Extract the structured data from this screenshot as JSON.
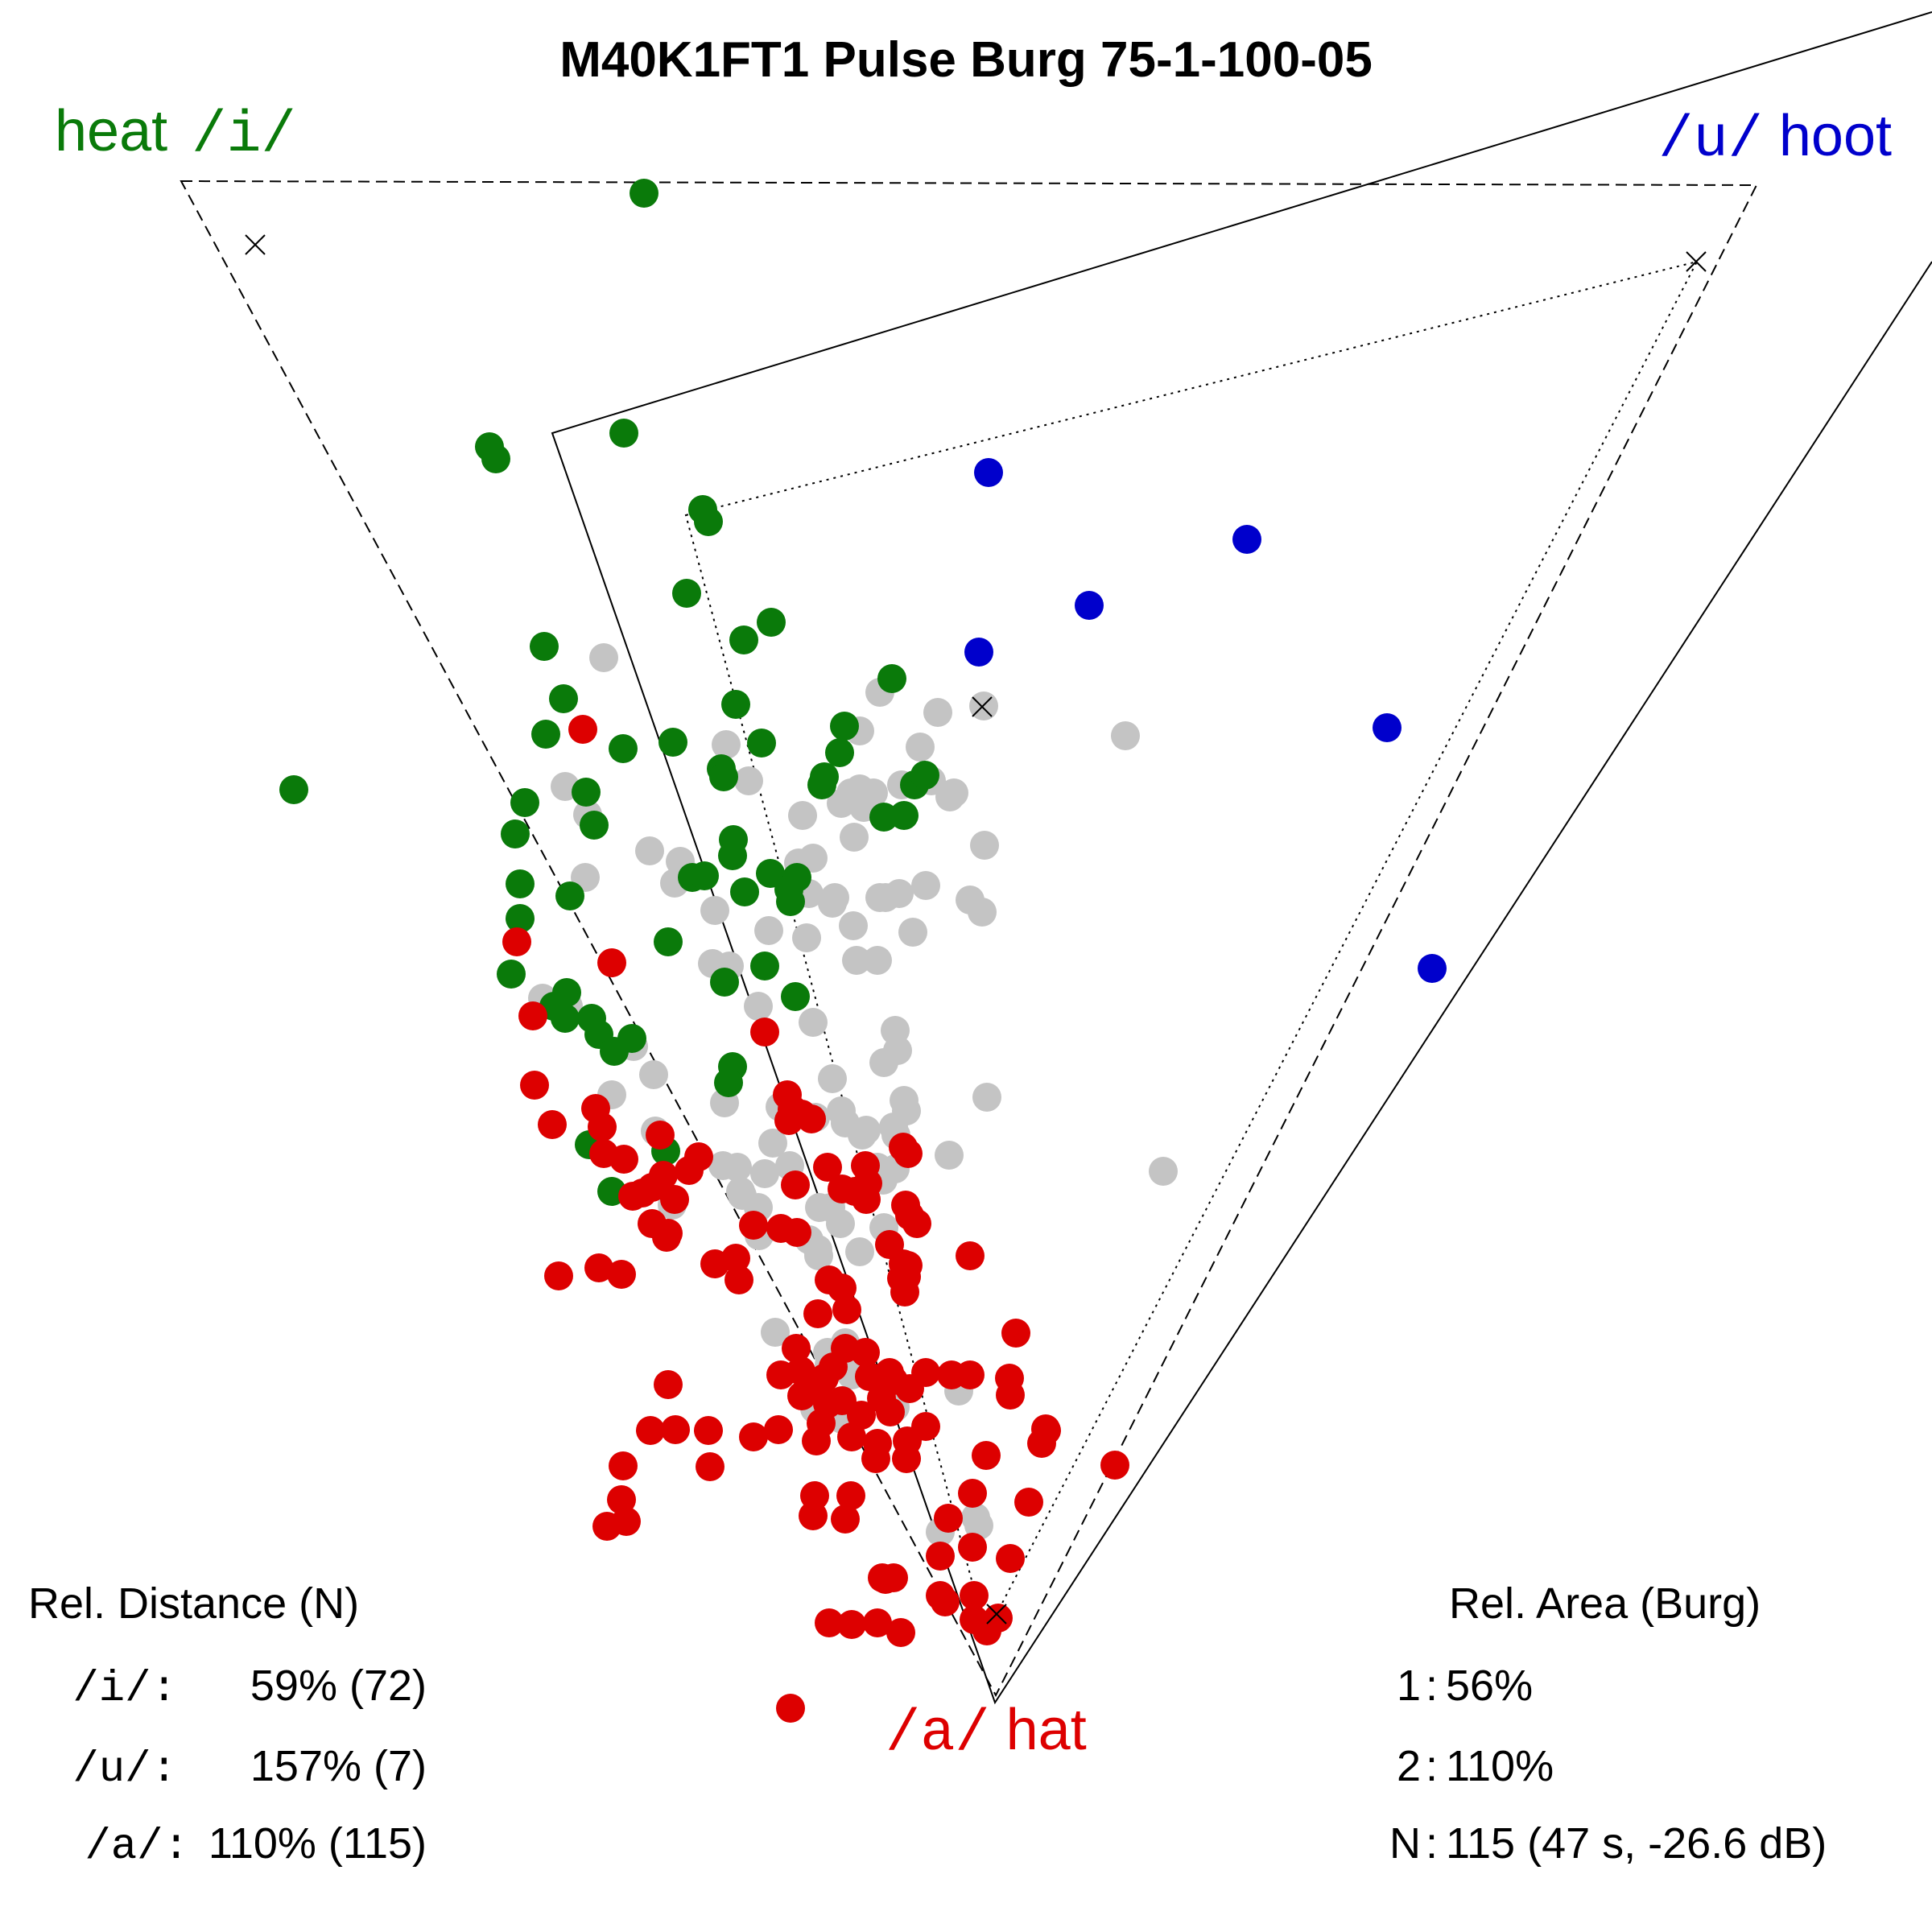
{
  "chart_data": {
    "type": "scatter",
    "title": "M40K1FT1 Pulse Burg 75-1-100-05",
    "corner_labels": {
      "i": {
        "word": "heat",
        "symbol": "/i/",
        "color": "#0a7a0a"
      },
      "u": {
        "word": "hoot",
        "symbol": "/u/",
        "color": "#0000cc"
      },
      "a": {
        "word": "hat",
        "symbol": "/a/",
        "color": "#dd0000"
      }
    },
    "series": [
      {
        "name": "i",
        "color": "#0a7a0a",
        "points": [
          [
            800,
            240
          ],
          [
            775,
            538
          ],
          [
            608,
            555
          ],
          [
            616,
            570
          ],
          [
            873,
            633
          ],
          [
            880,
            648
          ],
          [
            853,
            737
          ],
          [
            958,
            773
          ],
          [
            676,
            803
          ],
          [
            924,
            795
          ],
          [
            700,
            868
          ],
          [
            1108,
            843
          ],
          [
            678,
            912
          ],
          [
            774,
            930
          ],
          [
            836,
            922
          ],
          [
            914,
            875
          ],
          [
            946,
            923
          ],
          [
            1049,
            902
          ],
          [
            1043,
            935
          ],
          [
            896,
            955
          ],
          [
            1024,
            965
          ],
          [
            1136,
            975
          ],
          [
            728,
            984
          ],
          [
            899,
            965
          ],
          [
            1149,
            963
          ],
          [
            1021,
            975
          ],
          [
            1098,
            1015
          ],
          [
            1123,
            1013
          ],
          [
            652,
            997
          ],
          [
            738,
            1025
          ],
          [
            911,
            1043
          ],
          [
            910,
            1063
          ],
          [
            640,
            1036
          ],
          [
            860,
            1090
          ],
          [
            875,
            1088
          ],
          [
            925,
            1108
          ],
          [
            957,
            1085
          ],
          [
            990,
            1090
          ],
          [
            982,
            1120
          ],
          [
            708,
            1113
          ],
          [
            980,
            1105
          ],
          [
            646,
            1098
          ],
          [
            646,
            1141
          ],
          [
            830,
            1170
          ],
          [
            950,
            1200
          ],
          [
            635,
            1210
          ],
          [
            900,
            1220
          ],
          [
            988,
            1238
          ],
          [
            704,
            1233
          ],
          [
            735,
            1265
          ],
          [
            688,
            1250
          ],
          [
            702,
            1265
          ],
          [
            744,
            1285
          ],
          [
            763,
            1306
          ],
          [
            785,
            1290
          ],
          [
            910,
            1325
          ],
          [
            905,
            1345
          ],
          [
            732,
            1422
          ],
          [
            827,
            1430
          ],
          [
            760,
            1480
          ],
          [
            365,
            981
          ]
        ]
      },
      {
        "name": "u",
        "color": "#0000cc",
        "points": [
          [
            1228,
            587
          ],
          [
            1549,
            670
          ],
          [
            1353,
            752
          ],
          [
            1216,
            810
          ],
          [
            1723,
            904
          ],
          [
            1779,
            1203
          ]
        ]
      },
      {
        "name": "a",
        "color": "#dd0000",
        "points": [
          [
            724,
            906
          ],
          [
            642,
            1170
          ],
          [
            760,
            1196
          ],
          [
            662,
            1262
          ],
          [
            950,
            1282
          ],
          [
            664,
            1348
          ],
          [
            740,
            1377
          ],
          [
            686,
            1397
          ],
          [
            748,
            1400
          ],
          [
            820,
            1410
          ],
          [
            978,
            1360
          ],
          [
            984,
            1378
          ],
          [
            1122,
            1425
          ],
          [
            1128,
            1433
          ],
          [
            1075,
            1448
          ],
          [
            1078,
            1470
          ],
          [
            750,
            1433
          ],
          [
            775,
            1440
          ],
          [
            1028,
            1450
          ],
          [
            980,
            1392
          ],
          [
            996,
            1384
          ],
          [
            1008,
            1390
          ],
          [
            824,
            1460
          ],
          [
            856,
            1454
          ],
          [
            1046,
            1477
          ],
          [
            868,
            1437
          ],
          [
            1076,
            1490
          ],
          [
            786,
            1486
          ],
          [
            798,
            1482
          ],
          [
            810,
            1475
          ],
          [
            838,
            1490
          ],
          [
            810,
            1520
          ],
          [
            988,
            1472
          ],
          [
            1062,
            1480
          ],
          [
            1125,
            1497
          ],
          [
            1130,
            1510
          ],
          [
            1139,
            1520
          ],
          [
            1205,
            1560
          ],
          [
            936,
            1522
          ],
          [
            830,
            1532
          ],
          [
            970,
            1526
          ],
          [
            828,
            1537
          ],
          [
            990,
            1531
          ],
          [
            1105,
            1546
          ],
          [
            1128,
            1572
          ],
          [
            1126,
            1586
          ],
          [
            1122,
            1570
          ],
          [
            1120,
            1588
          ],
          [
            1124,
            1605
          ],
          [
            1046,
            1600
          ],
          [
            1030,
            1590
          ],
          [
            1016,
            1632
          ],
          [
            694,
            1585
          ],
          [
            744,
            1575
          ],
          [
            772,
            1583
          ],
          [
            914,
            1563
          ],
          [
            888,
            1570
          ],
          [
            918,
            1590
          ],
          [
            1052,
            1627
          ],
          [
            989,
            1675
          ],
          [
            1262,
            1656
          ],
          [
            1050,
            1675
          ],
          [
            1075,
            1680
          ],
          [
            1035,
            1698
          ],
          [
            995,
            1703
          ],
          [
            970,
            1708
          ],
          [
            1105,
            1705
          ],
          [
            1110,
            1715
          ],
          [
            1080,
            1710
          ],
          [
            1024,
            1712
          ],
          [
            1010,
            1722
          ],
          [
            1028,
            1744
          ],
          [
            1095,
            1737
          ],
          [
            1130,
            1725
          ],
          [
            1150,
            1705
          ],
          [
            1182,
            1708
          ],
          [
            1205,
            1708
          ],
          [
            1254,
            1712
          ],
          [
            1255,
            1733
          ],
          [
            996,
            1734
          ],
          [
            1046,
            1740
          ],
          [
            1070,
            1758
          ],
          [
            1106,
            1754
          ],
          [
            1020,
            1768
          ],
          [
            1150,
            1772
          ],
          [
            1299,
            1775
          ],
          [
            1294,
            1793
          ],
          [
            830,
            1720
          ],
          [
            808,
            1777
          ],
          [
            839,
            1776
          ],
          [
            1127,
            1790
          ],
          [
            880,
            1777
          ],
          [
            936,
            1785
          ],
          [
            967,
            1776
          ],
          [
            1014,
            1790
          ],
          [
            1058,
            1785
          ],
          [
            1090,
            1793
          ],
          [
            1126,
            1812
          ],
          [
            1088,
            1812
          ],
          [
            1225,
            1808
          ],
          [
            1300,
            1777
          ],
          [
            1385,
            1820
          ],
          [
            1012,
            1858
          ],
          [
            1057,
            1858
          ],
          [
            1278,
            1866
          ],
          [
            1050,
            1887
          ],
          [
            1010,
            1883
          ],
          [
            774,
            1821
          ],
          [
            882,
            1822
          ],
          [
            772,
            1863
          ],
          [
            778,
            1890
          ],
          [
            754,
            1896
          ],
          [
            1208,
            1855
          ],
          [
            1178,
            1886
          ],
          [
            1208,
            1922
          ],
          [
            1168,
            1933
          ],
          [
            1255,
            1936
          ],
          [
            1096,
            1960
          ],
          [
            1110,
            1960
          ],
          [
            1100,
            1962
          ],
          [
            1168,
            1982
          ],
          [
            1210,
            1982
          ],
          [
            1174,
            1990
          ],
          [
            1030,
            2016
          ],
          [
            1058,
            2018
          ],
          [
            1090,
            2016
          ],
          [
            1119,
            2028
          ],
          [
            1210,
            2012
          ],
          [
            1226,
            2026
          ],
          [
            1240,
            2010
          ],
          [
            982,
            2122
          ]
        ]
      },
      {
        "name": "other",
        "color": "#c4c4c4",
        "points": [
          [
            750,
            817
          ],
          [
            1093,
            860
          ],
          [
            1165,
            885
          ],
          [
            1222,
            877
          ],
          [
            1398,
            914
          ],
          [
            1068,
            908
          ],
          [
            902,
            925
          ],
          [
            1143,
            928
          ],
          [
            930,
            970
          ],
          [
            1085,
            985
          ],
          [
            1068,
            980
          ],
          [
            1073,
            1003
          ],
          [
            1157,
            970
          ],
          [
            1120,
            975
          ],
          [
            1180,
            990
          ],
          [
            1045,
            998
          ],
          [
            997,
            1013
          ],
          [
            1057,
            985
          ],
          [
            1223,
            1050
          ],
          [
            1185,
            985
          ],
          [
            702,
            977
          ],
          [
            730,
            1012
          ],
          [
            1010,
            1066
          ],
          [
            992,
            1072
          ],
          [
            1061,
            1040
          ],
          [
            807,
            1057
          ],
          [
            845,
            1070
          ],
          [
            838,
            1097
          ],
          [
            1005,
            1110
          ],
          [
            1100,
            1115
          ],
          [
            1150,
            1100
          ],
          [
            1037,
            1115
          ],
          [
            1093,
            1115
          ],
          [
            1117,
            1110
          ],
          [
            1205,
            1118
          ],
          [
            1220,
            1133
          ],
          [
            1034,
            1122
          ],
          [
            1060,
            1150
          ],
          [
            727,
            1090
          ],
          [
            888,
            1131
          ],
          [
            955,
            1156
          ],
          [
            1002,
            1165
          ],
          [
            1134,
            1158
          ],
          [
            1064,
            1193
          ],
          [
            1090,
            1193
          ],
          [
            885,
            1197
          ],
          [
            906,
            1200
          ],
          [
            942,
            1250
          ],
          [
            1010,
            1270
          ],
          [
            1112,
            1280
          ],
          [
            1115,
            1305
          ],
          [
            1098,
            1320
          ],
          [
            674,
            1240
          ],
          [
            706,
            1250
          ],
          [
            787,
            1300
          ],
          [
            812,
            1335
          ],
          [
            760,
            1360
          ],
          [
            1034,
            1340
          ],
          [
            1013,
            1388
          ],
          [
            1123,
            1367
          ],
          [
            1126,
            1380
          ],
          [
            1226,
            1363
          ],
          [
            1071,
            1410
          ],
          [
            1113,
            1410
          ],
          [
            1110,
            1400
          ],
          [
            1050,
            1395
          ],
          [
            1076,
            1404
          ],
          [
            814,
            1405
          ],
          [
            900,
            1370
          ],
          [
            969,
            1375
          ],
          [
            1045,
            1380
          ],
          [
            960,
            1420
          ],
          [
            950,
            1458
          ],
          [
            1179,
            1435
          ],
          [
            1090,
            1450
          ],
          [
            1112,
            1452
          ],
          [
            1445,
            1455
          ],
          [
            898,
            1448
          ],
          [
            981,
            1448
          ],
          [
            916,
            1450
          ],
          [
            1089,
            1455
          ],
          [
            1097,
            1466
          ],
          [
            920,
            1480
          ],
          [
            1032,
            1500
          ],
          [
            835,
            1497
          ],
          [
            922,
            1485
          ],
          [
            942,
            1500
          ],
          [
            1018,
            1500
          ],
          [
            943,
            1535
          ],
          [
            1005,
            1540
          ],
          [
            1016,
            1552
          ],
          [
            1017,
            1560
          ],
          [
            1044,
            1520
          ],
          [
            1068,
            1555
          ],
          [
            1098,
            1525
          ],
          [
            963,
            1655
          ],
          [
            1050,
            1668
          ],
          [
            1028,
            1680
          ],
          [
            1030,
            1695
          ],
          [
            1191,
            1728
          ],
          [
            1058,
            1708
          ],
          [
            1020,
            1720
          ],
          [
            1040,
            1744
          ],
          [
            1012,
            1750
          ],
          [
            1046,
            1763
          ],
          [
            1112,
            1748
          ],
          [
            1021,
            1756
          ],
          [
            1060,
            1765
          ],
          [
            1212,
            1885
          ],
          [
            1168,
            1903
          ],
          [
            1216,
            1895
          ]
        ]
      }
    ],
    "bottom_left": {
      "header": "Rel. Distance (N)",
      "rows": [
        {
          "label": "/i/:",
          "value": "59% (72)"
        },
        {
          "label": "/u/:",
          "value": "157% (7)"
        },
        {
          "label": "/a/:",
          "value": "110% (115)"
        }
      ]
    },
    "bottom_right": {
      "header": "Rel. Area (Burg)",
      "rows": [
        {
          "label": "1",
          "value": "56%"
        },
        {
          "label": "2",
          "value": "110%"
        },
        {
          "label": "N",
          "value": "115 (47 s, -26.6 dB)"
        }
      ]
    }
  }
}
